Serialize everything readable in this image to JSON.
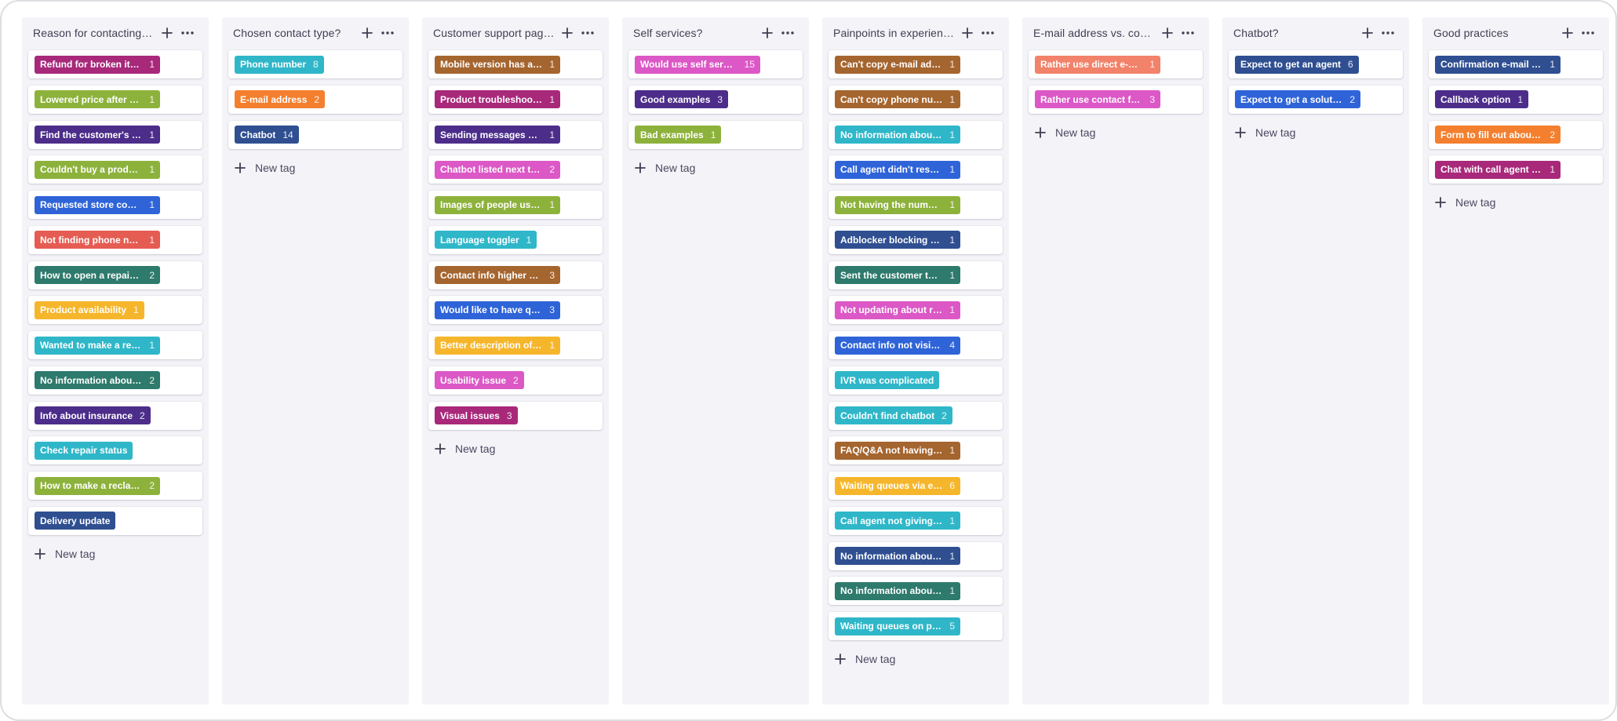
{
  "add_column_tag_icon": "plus-icon",
  "column_menu_icon": "more-horizontal-icon",
  "new_tag_label": "New tag",
  "columns": [
    {
      "title": "Reason for contacting customer support?",
      "tags": [
        {
          "label": "Refund for broken items (new)",
          "count": "1",
          "color": "#a8287a"
        },
        {
          "label": "Lowered price after customer bought",
          "count": "1",
          "color": "#8db23c"
        },
        {
          "label": "Find the customer's receipt",
          "count": "1",
          "color": "#4c2d8a"
        },
        {
          "label": "Couldn't buy a product",
          "count": "1",
          "color": "#8db23c"
        },
        {
          "label": "Requested store contact",
          "count": "1",
          "color": "#2f64d8"
        },
        {
          "label": "Not finding phone number of store",
          "count": "1",
          "color": "#e55c52"
        },
        {
          "label": "How to open a repair ticket",
          "count": "2",
          "color": "#2e7a6c"
        },
        {
          "label": "Product availability",
          "count": "1",
          "color": "#f6b62c"
        },
        {
          "label": "Wanted to make a return",
          "count": "1",
          "color": "#2fb7c9"
        },
        {
          "label": "No information about self service",
          "count": "2",
          "color": "#2e7a6c"
        },
        {
          "label": "Info about insurance",
          "count": "2",
          "color": "#4c2d8a"
        },
        {
          "label": "Check repair status",
          "count": "",
          "color": "#2fb7c9"
        },
        {
          "label": "How to make a reclamation",
          "count": "2",
          "color": "#8db23c"
        },
        {
          "label": "Delivery update",
          "count": "",
          "color": "#2f4f91"
        }
      ]
    },
    {
      "title": "Chosen contact type?",
      "tags": [
        {
          "label": "Phone number",
          "count": "8",
          "color": "#2fb7c9"
        },
        {
          "label": "E-mail address",
          "count": "2",
          "color": "#f47f2e"
        },
        {
          "label": "Chatbot",
          "count": "14",
          "color": "#2f4f91"
        }
      ]
    },
    {
      "title": "Customer support page feedback?",
      "tags": [
        {
          "label": "Mobile version has a bad overview",
          "count": "1",
          "color": "#a5652f"
        },
        {
          "label": "Product troubleshooting (mobile)",
          "count": "1",
          "color": "#a8287a"
        },
        {
          "label": "Sending messages when logged in",
          "count": "1",
          "color": "#4c2d8a"
        },
        {
          "label": "Chatbot listed next to phone number",
          "count": "2",
          "color": "#dc58c6"
        },
        {
          "label": "Images of people using the products",
          "count": "1",
          "color": "#8db23c"
        },
        {
          "label": "Language toggler",
          "count": "1",
          "color": "#2fb7c9"
        },
        {
          "label": "Contact info higher on page",
          "count": "3",
          "color": "#a5652f"
        },
        {
          "label": "Would like to have queue display",
          "count": "3",
          "color": "#2f64d8"
        },
        {
          "label": "Better description of subpages",
          "count": "1",
          "color": "#f6b62c"
        },
        {
          "label": "Usability issue",
          "count": "2",
          "color": "#dc58c6"
        },
        {
          "label": "Visual issues",
          "count": "3",
          "color": "#a8287a"
        }
      ]
    },
    {
      "title": "Self services?",
      "tags": [
        {
          "label": "Would use self service",
          "count": "15",
          "color": "#dc58c6"
        },
        {
          "label": "Good examples",
          "count": "3",
          "color": "#4c2d8a"
        },
        {
          "label": "Bad examples",
          "count": "1",
          "color": "#8db23c"
        }
      ]
    },
    {
      "title": "Painpoints in experience?",
      "tags": [
        {
          "label": "Can't copy e-mail address on mobile",
          "count": "1",
          "color": "#a5652f"
        },
        {
          "label": "Can't copy phone number on mobile",
          "count": "1",
          "color": "#a5652f"
        },
        {
          "label": "No information about pricemarking",
          "count": "1",
          "color": "#2fb7c9"
        },
        {
          "label": "Call agent didn't respont via chat",
          "count": "1",
          "color": "#2f64d8"
        },
        {
          "label": "Not having the number of third party",
          "count": "1",
          "color": "#8db23c"
        },
        {
          "label": "Adblocker blocking chatbot icon",
          "count": "1",
          "color": "#2f4f91"
        },
        {
          "label": "Sent the customer to store instead",
          "count": "1",
          "color": "#2e7a6c"
        },
        {
          "label": "Not updating about repair status",
          "count": "1",
          "color": "#dc58c6"
        },
        {
          "label": "Contact info not visible enough",
          "count": "4",
          "color": "#2f64d8"
        },
        {
          "label": "IVR was complicated",
          "count": "",
          "color": "#2fb7c9"
        },
        {
          "label": "Couldn't find chatbot",
          "count": "2",
          "color": "#2fb7c9"
        },
        {
          "label": "FAQ/Q&A not having info about it",
          "count": "1",
          "color": "#a5652f"
        },
        {
          "label": "Waiting queues via e-mail",
          "count": "6",
          "color": "#f6b62c"
        },
        {
          "label": "Call agent not giving correct info",
          "count": "1",
          "color": "#2fb7c9"
        },
        {
          "label": "No information about reclamations",
          "count": "1",
          "color": "#2f4f91"
        },
        {
          "label": "No information about insurance",
          "count": "1",
          "color": "#2e7a6c"
        },
        {
          "label": "Waiting queues on phone",
          "count": "5",
          "color": "#2fb7c9"
        }
      ]
    },
    {
      "title": "E-mail address vs. contact form?",
      "tags": [
        {
          "label": "Rather use direct e-mail address",
          "count": "1",
          "color": "#f2826a"
        },
        {
          "label": "Rather use contact form",
          "count": "3",
          "color": "#dc58c6"
        }
      ]
    },
    {
      "title": "Chatbot?",
      "tags": [
        {
          "label": "Expect to get an agent",
          "count": "6",
          "color": "#2f4f91"
        },
        {
          "label": "Expect to get a solution for my issue",
          "count": "2",
          "color": "#2f64d8"
        }
      ]
    },
    {
      "title": "Good practices",
      "tags": [
        {
          "label": "Confirmation e-mail (when handled)",
          "count": "1",
          "color": "#2f4f91"
        },
        {
          "label": "Callback option",
          "count": "1",
          "color": "#4c2d8a"
        },
        {
          "label": "Form to fill out about fault of product",
          "count": "2",
          "color": "#f47f2e"
        },
        {
          "label": "Chat with call agent through site",
          "count": "1",
          "color": "#a8287a"
        }
      ]
    }
  ]
}
